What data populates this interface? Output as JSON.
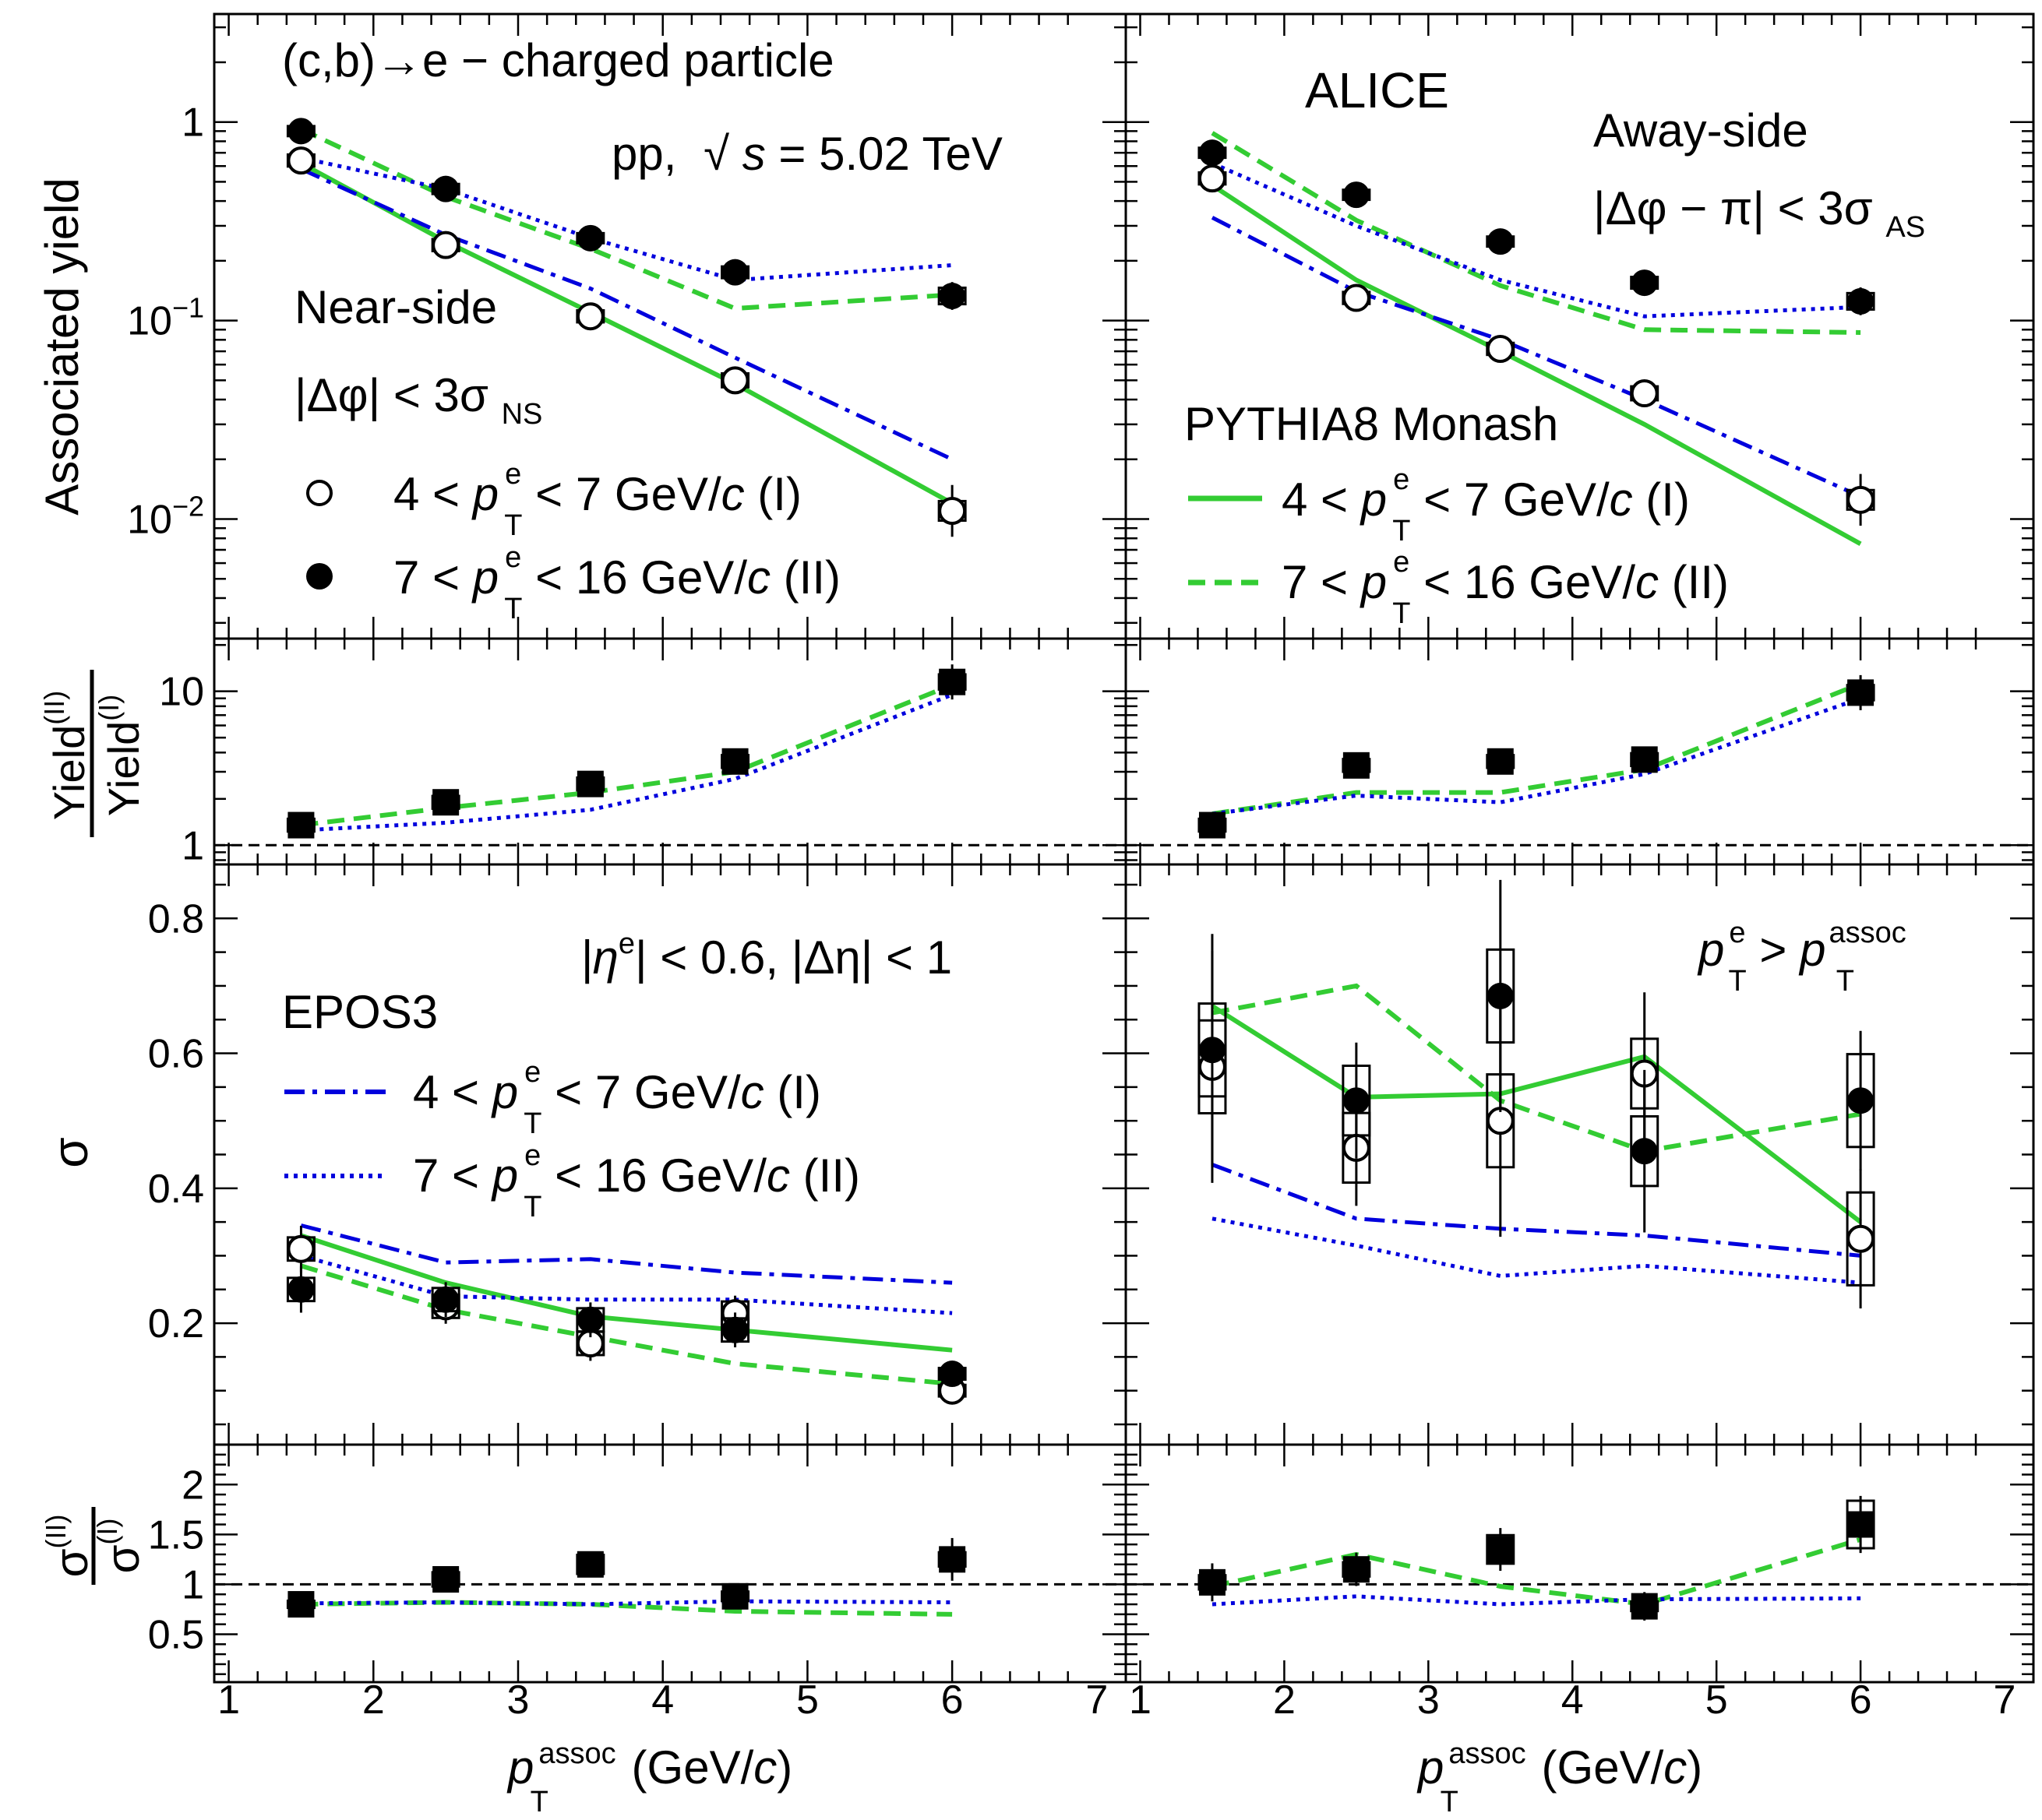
{
  "colors": {
    "pythia_I": "#33cc33",
    "pythia_II": "#33cc33",
    "epos_I": "#0000dd",
    "epos_II": "#0000dd",
    "data": "#000000",
    "ref_line": "#000000"
  },
  "labels": {
    "title": "(c,b)→e − charged particle",
    "system_prefix": "pp,",
    "sqrt": "√",
    "energy_var": "s",
    "energy_suffix": " = 5.02 TeV",
    "alice": "ALICE",
    "near_side": "Near-side",
    "near_cut": "|Δφ| < 3σ",
    "near_cut_sub": "NS",
    "away_side": "Away-side",
    "away_cut": "|Δφ − π| < 3σ",
    "away_cut_sub": "AS",
    "pythia": "PYTHIA8 Monash",
    "epos": "EPOS3",
    "eta_cut": "|η",
    "eta_sup": "e",
    "eta_cut_rest": "| < 0.6, |Δη| < 1",
    "pt_cond_p": "p",
    "pt_cond_sup": "e",
    "pt_cond_sub": "T",
    "pt_cond_mid": " > ",
    "pt_cond_sup2": "assoc",
    "leg_I_pre": "4 < ",
    "leg_I_post": " < 7 GeV/",
    "leg_I_c": "c",
    "leg_I_tag": " (I)",
    "leg_II_pre": "7 < ",
    "leg_II_post": " < 16 GeV/",
    "leg_II_c": "c",
    "leg_II_tag": " (II)",
    "leg_p": "p",
    "leg_sup": "e",
    "leg_sub": "T",
    "ylabel_yield": "Associated yield",
    "ylabel_ratio_num": "Yield",
    "ylabel_ratio_num_sup": "(II)",
    "ylabel_ratio_den": "Yield",
    "ylabel_ratio_den_sup": "(I)",
    "ylabel_sigma": "σ",
    "ylabel_sratio_num": "σ",
    "ylabel_sratio_num_sup": "(II)",
    "ylabel_sratio_den": "σ",
    "ylabel_sratio_den_sup": "(I)",
    "xlabel_p": "p",
    "xlabel_sub": "T",
    "xlabel_sup": "assoc",
    "xlabel_unit": " (GeV/",
    "xlabel_c": "c",
    "xlabel_close": ")"
  },
  "chart_data": {
    "type": "scatter",
    "x": [
      1.5,
      2.5,
      3.5,
      4.5,
      6.0
    ],
    "xlim": [
      0.9,
      7.2
    ],
    "xticks": [
      "1",
      "2",
      "3",
      "4",
      "5",
      "6",
      "7"
    ],
    "xlabel": "p_T^assoc (GeV/c)",
    "panels": {
      "yield": {
        "ylabel": "Associated yield",
        "ylog": true,
        "ylim": [
          0.0025,
          3.5
        ],
        "yticks": [
          "10^-2",
          "10^-1",
          "1"
        ],
        "near": {
          "data_I": [
            0.64,
            0.24,
            0.105,
            0.05,
            0.011
          ],
          "data_II": [
            0.9,
            0.46,
            0.26,
            0.175,
            0.133
          ],
          "pythia_I": [
            0.62,
            0.25,
            0.11,
            0.048,
            0.012
          ],
          "pythia_II": [
            0.92,
            0.42,
            0.23,
            0.115,
            0.135
          ],
          "epos_I": [
            0.58,
            0.27,
            0.145,
            0.065,
            0.02
          ],
          "epos_II": [
            0.66,
            0.46,
            0.26,
            0.16,
            0.19
          ]
        },
        "away": {
          "data_I": [
            0.52,
            0.13,
            0.072,
            0.043,
            0.0125
          ],
          "data_II": [
            0.7,
            0.43,
            0.25,
            0.155,
            0.125
          ],
          "pythia_I": [
            0.48,
            0.16,
            0.07,
            0.03,
            0.0075
          ],
          "pythia_II": [
            0.88,
            0.32,
            0.15,
            0.09,
            0.087
          ],
          "epos_I": [
            0.33,
            0.14,
            0.08,
            0.04,
            0.013
          ],
          "epos_II": [
            0.62,
            0.3,
            0.16,
            0.105,
            0.117
          ]
        }
      },
      "yield_ratio": {
        "ylabel": "Yield(II)/Yield(I)",
        "ylog": true,
        "ylim": [
          0.75,
          22
        ],
        "yticks": [
          "1",
          "10"
        ],
        "near": {
          "data": [
            1.35,
            1.9,
            2.5,
            3.5,
            11.5
          ],
          "pythia": [
            1.35,
            1.75,
            2.2,
            3.0,
            11.0
          ],
          "epos": [
            1.25,
            1.4,
            1.7,
            2.7,
            9.5
          ]
        },
        "away": {
          "data": [
            1.35,
            3.3,
            3.5,
            3.6,
            9.8
          ],
          "pythia": [
            1.6,
            2.2,
            2.2,
            3.1,
            11.2
          ],
          "epos": [
            1.6,
            2.1,
            1.9,
            2.9,
            9.0
          ]
        }
      },
      "sigma": {
        "ylabel": "σ",
        "ylog": false,
        "ylim": [
          0.02,
          0.88
        ],
        "yticks": [
          "0.2",
          "0.4",
          "0.6",
          "0.8"
        ],
        "near": {
          "data_I": [
            0.31,
            0.225,
            0.17,
            0.215,
            0.1
          ],
          "data_II": [
            0.25,
            0.235,
            0.205,
            0.19,
            0.125
          ],
          "pythia_I": [
            0.33,
            0.26,
            0.21,
            0.19,
            0.16
          ],
          "pythia_II": [
            0.285,
            0.22,
            0.18,
            0.14,
            0.11
          ],
          "epos_I": [
            0.345,
            0.29,
            0.295,
            0.275,
            0.26
          ],
          "epos_II": [
            0.3,
            0.24,
            0.235,
            0.235,
            0.215
          ]
        },
        "away": {
          "data_I": [
            0.58,
            0.46,
            0.5,
            0.57,
            0.325
          ],
          "data_II": [
            0.605,
            0.53,
            0.685,
            0.455,
            0.53
          ],
          "pythia_I": [
            0.67,
            0.535,
            0.54,
            0.595,
            0.35
          ],
          "pythia_II": [
            0.66,
            0.7,
            0.53,
            0.455,
            0.51
          ],
          "epos_I": [
            0.435,
            0.355,
            0.34,
            0.33,
            0.3
          ],
          "epos_II": [
            0.355,
            0.315,
            0.27,
            0.285,
            0.26
          ]
        }
      },
      "sigma_ratio": {
        "ylabel": "σ(II)/σ(I)",
        "ylog": false,
        "ylim": [
          0.02,
          2.4
        ],
        "yticks": [
          "0.5",
          "1",
          "1.5",
          "2"
        ],
        "near": {
          "data": [
            0.8,
            1.05,
            1.2,
            0.88,
            1.25
          ],
          "pythia": [
            0.8,
            0.82,
            0.8,
            0.73,
            0.7
          ],
          "epos": [
            0.81,
            0.82,
            0.8,
            0.83,
            0.82
          ]
        },
        "away": {
          "data": [
            1.02,
            1.15,
            1.35,
            0.78,
            1.6
          ],
          "pythia": [
            0.98,
            1.3,
            0.98,
            0.8,
            1.45
          ],
          "epos": [
            0.8,
            0.88,
            0.8,
            0.85,
            0.86
          ]
        }
      }
    },
    "legend": {
      "data": [
        "4 < pT^e < 7 GeV/c (I)",
        "7 < pT^e < 16 GeV/c (II)"
      ],
      "pythia": [
        "4 < pT^e < 7 GeV/c (I)",
        "7 < pT^e < 16 GeV/c (II)"
      ],
      "epos": [
        "4 < pT^e < 7 GeV/c (I)",
        "7 < pT^e < 16 GeV/c (II)"
      ]
    }
  }
}
